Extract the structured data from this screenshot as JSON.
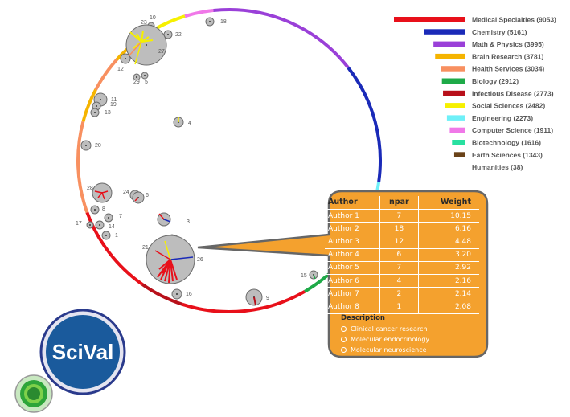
{
  "legend": [
    {
      "label": "Medical Specialties (9053)",
      "color": "#e8101a",
      "value": 9053
    },
    {
      "label": "Chemistry  (5161)",
      "color": "#1a2ab8",
      "value": 5161
    },
    {
      "label": "Math & Physics (3995)",
      "color": "#9a40d8",
      "value": 3995
    },
    {
      "label": "Brain Research (3781)",
      "color": "#f5b400",
      "value": 3781
    },
    {
      "label": "Health Services (3034)",
      "color": "#f89060",
      "value": 3034
    },
    {
      "label": "Biology (2912)",
      "color": "#1eaa48",
      "value": 2912
    },
    {
      "label": "Infectious Disease (2773)",
      "color": "#b8101a",
      "value": 2773
    },
    {
      "label": "Social Sciences (2482)",
      "color": "#f6f000",
      "value": 2482
    },
    {
      "label": "Engineering (2273)",
      "color": "#6ef0f8",
      "value": 2273
    },
    {
      "label": "Computer Science (1911)",
      "color": "#f078e8",
      "value": 1911
    },
    {
      "label": "Biotechnology (1616)",
      "color": "#28e0a0",
      "value": 1616
    },
    {
      "label": "Earth Sciences (1343)",
      "color": "#6a4218",
      "value": 1343
    },
    {
      "label": "Humanities (38)",
      "color": "#ffffff",
      "value": 38
    }
  ],
  "ring_segments": [
    {
      "color": "#9a40d8",
      "from": -96,
      "to": -38
    },
    {
      "color": "#1a2ab8",
      "from": -38,
      "to": 8
    },
    {
      "color": "#6ef0f8",
      "from": 8,
      "to": 46
    },
    {
      "color": "#1eaa48",
      "from": 46,
      "to": 60
    },
    {
      "color": "#e8101a",
      "from": 60,
      "to": 108
    },
    {
      "color": "#b8101a",
      "from": 108,
      "to": 125
    },
    {
      "color": "#e8101a",
      "from": 125,
      "to": 160
    },
    {
      "color": "#f89060",
      "from": 160,
      "to": 195
    },
    {
      "color": "#f5b400",
      "from": 195,
      "to": 208
    },
    {
      "color": "#f89060",
      "from": 208,
      "to": 222
    },
    {
      "color": "#f5b400",
      "from": 222,
      "to": 232
    },
    {
      "color": "#f89060",
      "from": 232,
      "to": 240
    },
    {
      "color": "#f6f000",
      "from": 240,
      "to": 253
    },
    {
      "color": "#f078e8",
      "from": 253,
      "to": 264
    }
  ],
  "nodes": [
    {
      "label": "18",
      "r": 5
    },
    {
      "label": "23",
      "r": 4
    },
    {
      "label": "10",
      "r": 4
    },
    {
      "label": "22",
      "r": 5
    },
    {
      "label": "27",
      "r": 25
    },
    {
      "label": "12",
      "r": 6
    },
    {
      "label": "29",
      "r": 4
    },
    {
      "label": "5",
      "r": 4
    },
    {
      "label": "11",
      "r": 8
    },
    {
      "label": "19",
      "r": 5
    },
    {
      "label": "13",
      "r": 5
    },
    {
      "label": "4",
      "r": 6
    },
    {
      "label": "20",
      "r": 6
    },
    {
      "label": "28",
      "r": 12
    },
    {
      "label": "24",
      "r": 6
    },
    {
      "label": "6",
      "r": 7
    },
    {
      "label": "8",
      "r": 5
    },
    {
      "label": "7",
      "r": 5
    },
    {
      "label": "17",
      "r": 4
    },
    {
      "label": "14",
      "r": 5
    },
    {
      "label": "1",
      "r": 5
    },
    {
      "label": "3",
      "r": 8
    },
    {
      "label": "25",
      "r": 4
    },
    {
      "label": "21",
      "r": 5
    },
    {
      "label": "26",
      "r": 30
    },
    {
      "label": "16",
      "r": 6
    },
    {
      "label": "9",
      "r": 10
    },
    {
      "label": "15",
      "r": 5
    }
  ],
  "callout": {
    "headers": [
      "Author",
      "npar",
      "Weight"
    ],
    "rows": [
      {
        "author": "Author 1",
        "npar": "7",
        "weight": "10.15"
      },
      {
        "author": "Author 2",
        "npar": "18",
        "weight": "6.16"
      },
      {
        "author": "Author 3",
        "npar": "12",
        "weight": "4.48"
      },
      {
        "author": "Author 4",
        "npar": "6",
        "weight": "3.20"
      },
      {
        "author": "Author 5",
        "npar": "7",
        "weight": "2.92"
      },
      {
        "author": "Author 6",
        "npar": "4",
        "weight": "2.16"
      },
      {
        "author": "Author 7",
        "npar": "2",
        "weight": "2.14"
      },
      {
        "author": "Author 8",
        "npar": "1",
        "weight": "2.08"
      }
    ],
    "description_title": "Description",
    "description_items": [
      "Clinical cancer research",
      "Molecular endocrinology",
      "Molecular neuroscience"
    ],
    "fill_color": "#f4a12e"
  },
  "logo": {
    "text": "SciVal",
    "color": "#1a5a9c",
    "ring_color": "#2a3a8c"
  },
  "small_logo_color": "#2ea53a"
}
